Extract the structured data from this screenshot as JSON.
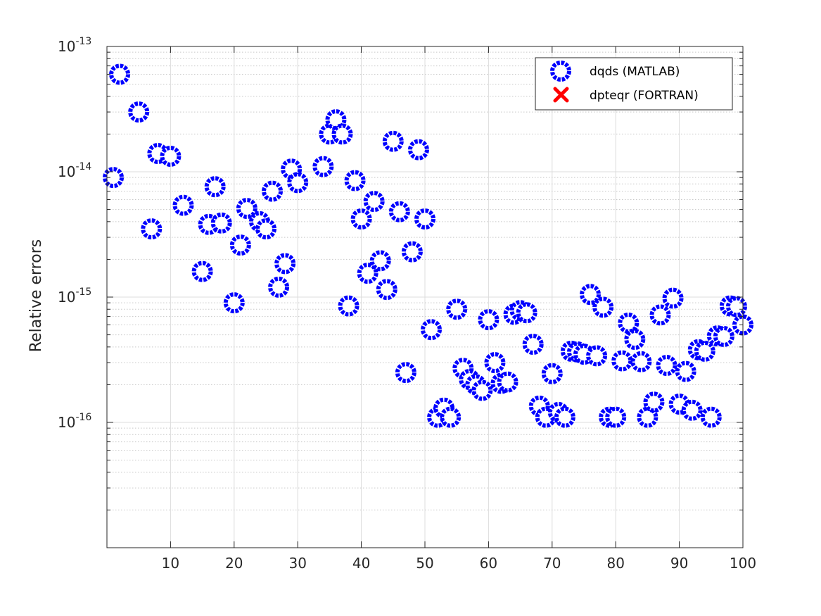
{
  "chart_data": {
    "type": "scatter",
    "title": "",
    "xlabel": "",
    "ylabel": "Relative errors",
    "xlim": [
      0,
      100
    ],
    "ylim": [
      1e-17,
      1e-13
    ],
    "yscale": "log",
    "xticks": [
      10,
      20,
      30,
      40,
      50,
      60,
      70,
      80,
      90,
      100
    ],
    "xtick_labels": [
      "10",
      "20",
      "30",
      "40",
      "50",
      "60",
      "70",
      "80",
      "90",
      "100"
    ],
    "yticks": [
      {
        "value": 1e-13,
        "mantissa": "10",
        "exponent": "-13"
      },
      {
        "value": 1e-14,
        "mantissa": "10",
        "exponent": "-14"
      },
      {
        "value": 1e-15,
        "mantissa": "10",
        "exponent": "-15"
      },
      {
        "value": 1e-16,
        "mantissa": "10",
        "exponent": "-16"
      }
    ],
    "grid": true,
    "legend_position": "top-right",
    "series": [
      {
        "name": "dqds (MATLAB)",
        "marker": "circle",
        "color": "#0000ff",
        "points": [
          [
            1,
            9e-15
          ],
          [
            2,
            6e-14
          ],
          [
            5,
            3e-14
          ],
          [
            7,
            3.5e-15
          ],
          [
            8,
            1.4e-14
          ],
          [
            10,
            1.33e-14
          ],
          [
            12,
            5.4e-15
          ],
          [
            15,
            1.6e-15
          ],
          [
            16,
            3.8e-15
          ],
          [
            17,
            7.6e-15
          ],
          [
            18,
            3.9e-15
          ],
          [
            20,
            9e-16
          ],
          [
            21,
            2.6e-15
          ],
          [
            22,
            5.1e-15
          ],
          [
            24,
            4e-15
          ],
          [
            25,
            3.5e-15
          ],
          [
            26,
            7e-15
          ],
          [
            27,
            1.2e-15
          ],
          [
            28,
            1.85e-15
          ],
          [
            29,
            1.05e-14
          ],
          [
            30,
            8.2e-15
          ],
          [
            34,
            1.1e-14
          ],
          [
            35,
            2e-14
          ],
          [
            36,
            2.6e-14
          ],
          [
            37,
            2e-14
          ],
          [
            38,
            8.5e-16
          ],
          [
            39,
            8.5e-15
          ],
          [
            40,
            4.2e-15
          ],
          [
            41,
            1.55e-15
          ],
          [
            42,
            5.8e-15
          ],
          [
            43,
            1.95e-15
          ],
          [
            44,
            1.15e-15
          ],
          [
            45,
            1.75e-14
          ],
          [
            46,
            4.8e-15
          ],
          [
            47,
            2.5e-16
          ],
          [
            48,
            2.3e-15
          ],
          [
            49,
            1.5e-14
          ],
          [
            50,
            4.2e-15
          ],
          [
            51,
            5.5e-16
          ],
          [
            52,
            1.1e-16
          ],
          [
            53,
            1.3e-16
          ],
          [
            54,
            1.1e-16
          ],
          [
            55,
            8e-16
          ],
          [
            56,
            2.7e-16
          ],
          [
            57,
            2.2e-16
          ],
          [
            58,
            2e-16
          ],
          [
            59,
            1.8e-16
          ],
          [
            60,
            6.6e-16
          ],
          [
            61,
            3e-16
          ],
          [
            62,
            2.05e-16
          ],
          [
            63,
            2.1e-16
          ],
          [
            64,
            7.3e-16
          ],
          [
            65,
            7.8e-16
          ],
          [
            66,
            7.5e-16
          ],
          [
            67,
            4.2e-16
          ],
          [
            68,
            1.35e-16
          ],
          [
            69,
            1.1e-16
          ],
          [
            70,
            2.45e-16
          ],
          [
            71,
            1.2e-16
          ],
          [
            72,
            1.1e-16
          ],
          [
            73,
            3.7e-16
          ],
          [
            74,
            3.65e-16
          ],
          [
            75,
            3.5e-16
          ],
          [
            76,
            1.05e-15
          ],
          [
            77,
            3.4e-16
          ],
          [
            78,
            8.3e-16
          ],
          [
            79,
            1.1e-16
          ],
          [
            80,
            1.1e-16
          ],
          [
            81,
            3.1e-16
          ],
          [
            82,
            6.2e-16
          ],
          [
            83,
            4.6e-16
          ],
          [
            84,
            3.05e-16
          ],
          [
            85,
            1.1e-16
          ],
          [
            86,
            1.45e-16
          ],
          [
            87,
            7.2e-16
          ],
          [
            88,
            2.85e-16
          ],
          [
            89,
            9.8e-16
          ],
          [
            90,
            1.4e-16
          ],
          [
            91,
            2.55e-16
          ],
          [
            92,
            1.25e-16
          ],
          [
            93,
            3.8e-16
          ],
          [
            94,
            3.7e-16
          ],
          [
            95,
            1.1e-16
          ],
          [
            96,
            4.9e-16
          ],
          [
            97,
            4.85e-16
          ],
          [
            98,
            8.5e-16
          ],
          [
            99,
            8.4e-16
          ],
          [
            100,
            6e-16
          ]
        ]
      },
      {
        "name": "dpteqr (FORTRAN)",
        "marker": "x",
        "color": "#ff0000",
        "points": []
      }
    ]
  }
}
